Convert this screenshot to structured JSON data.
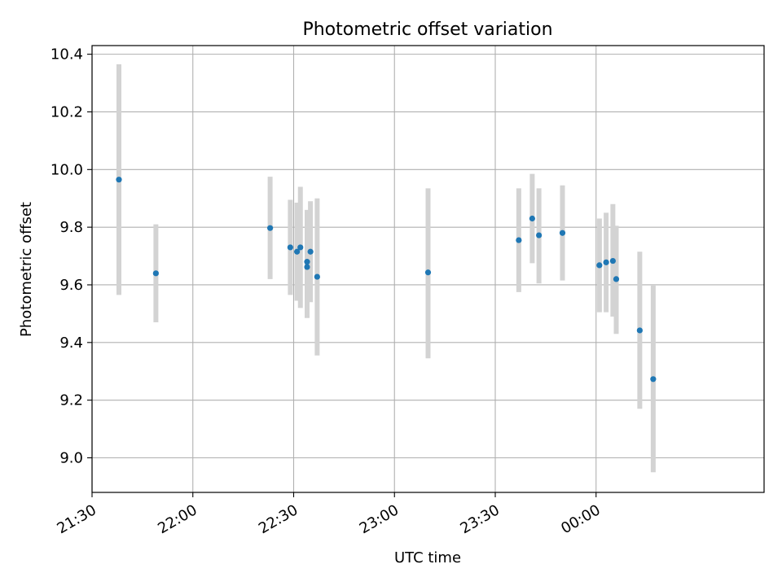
{
  "chart_data": {
    "type": "scatter",
    "title": "Photometric offset variation",
    "xlabel": "UTC time",
    "ylabel": "Photometric offset",
    "xlim": [
      "21:30",
      "00:50"
    ],
    "ylim": [
      8.88,
      10.43
    ],
    "x_ticks": [
      "21:30",
      "22:00",
      "22:30",
      "23:00",
      "23:30",
      "00:00"
    ],
    "y_ticks": [
      "9.0",
      "9.2",
      "9.4",
      "9.6",
      "9.8",
      "10.0",
      "10.2",
      "10.4"
    ],
    "grid": true,
    "legend": "none",
    "series": [
      {
        "marker_color": "#1f77b4",
        "errorbar_color": "#d3d3d3",
        "points": [
          {
            "time": "21:38",
            "y": 9.965,
            "low": 9.565,
            "high": 10.365
          },
          {
            "time": "21:49",
            "y": 9.64,
            "low": 9.47,
            "high": 9.81
          },
          {
            "time": "22:23",
            "y": 9.797,
            "low": 9.62,
            "high": 9.975
          },
          {
            "time": "22:29",
            "y": 9.73,
            "low": 9.565,
            "high": 9.895
          },
          {
            "time": "22:31",
            "y": 9.715,
            "low": 9.545,
            "high": 9.885
          },
          {
            "time": "22:32",
            "y": 9.73,
            "low": 9.52,
            "high": 9.94
          },
          {
            "time": "22:34",
            "y": 9.68,
            "low": 9.5,
            "high": 9.86
          },
          {
            "time": "22:34",
            "y": 9.662,
            "low": 9.485,
            "high": 9.84
          },
          {
            "time": "22:35",
            "y": 9.715,
            "low": 9.54,
            "high": 9.89
          },
          {
            "time": "22:37",
            "y": 9.628,
            "low": 9.355,
            "high": 9.9
          },
          {
            "time": "23:10",
            "y": 9.643,
            "low": 9.345,
            "high": 9.935
          },
          {
            "time": "23:37",
            "y": 9.755,
            "low": 9.575,
            "high": 9.935
          },
          {
            "time": "23:41",
            "y": 9.83,
            "low": 9.675,
            "high": 9.985
          },
          {
            "time": "23:43",
            "y": 9.772,
            "low": 9.605,
            "high": 9.935
          },
          {
            "time": "23:50",
            "y": 9.78,
            "low": 9.615,
            "high": 9.945
          },
          {
            "time": "00:01",
            "y": 9.668,
            "low": 9.505,
            "high": 9.83
          },
          {
            "time": "00:03",
            "y": 9.678,
            "low": 9.505,
            "high": 9.85
          },
          {
            "time": "00:05",
            "y": 9.683,
            "low": 9.49,
            "high": 9.88
          },
          {
            "time": "00:06",
            "y": 9.62,
            "low": 9.43,
            "high": 9.805
          },
          {
            "time": "00:13",
            "y": 9.442,
            "low": 9.17,
            "high": 9.715
          },
          {
            "time": "00:17",
            "y": 9.273,
            "low": 8.95,
            "high": 9.6
          }
        ]
      }
    ]
  }
}
